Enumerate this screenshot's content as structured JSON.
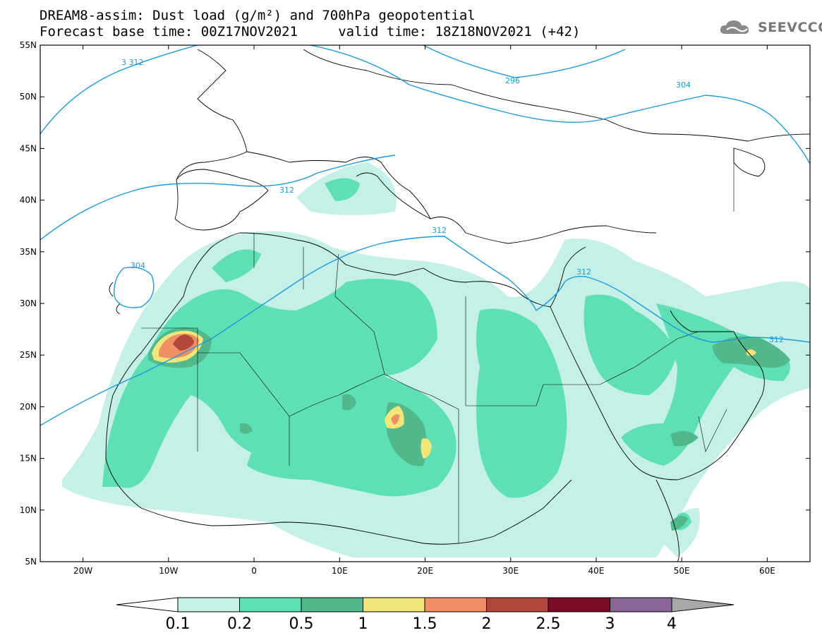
{
  "header": {
    "line1": "DREAM8-assim: Dust load (g/m²) and 700hPa geopotential",
    "line2": "Forecast base time: 00Z17NOV2021     valid time: 18Z18NOV2021 (+42)",
    "logo_text": "SEEVCCC",
    "logo_icon": "cloud-icon"
  },
  "map": {
    "lon_range": [
      -25,
      65
    ],
    "lat_range": [
      5,
      55
    ],
    "lat_labels": [
      "55N",
      "50N",
      "45N",
      "40N",
      "35N",
      "30N",
      "25N",
      "20N",
      "15N",
      "10N",
      "5N"
    ],
    "lon_labels": [
      "20W",
      "10W",
      "0",
      "10E",
      "20E",
      "30E",
      "40E",
      "50E",
      "60E"
    ],
    "contour_color": "#1a9be0",
    "contour_labels": [
      "3 312",
      "296",
      "304",
      "312",
      "312",
      "304",
      "312",
      "312"
    ]
  },
  "colorbar": {
    "labels": [
      "0.1",
      "0.2",
      "0.5",
      "1",
      "1.5",
      "2",
      "2.5",
      "3",
      "4"
    ],
    "colors": [
      "#c4f0e7",
      "#5ee0b4",
      "#52b98c",
      "#f2e57a",
      "#ee8f64",
      "#b4473c",
      "#7a0a26",
      "#8a6599",
      "#a8a8a8"
    ]
  }
}
